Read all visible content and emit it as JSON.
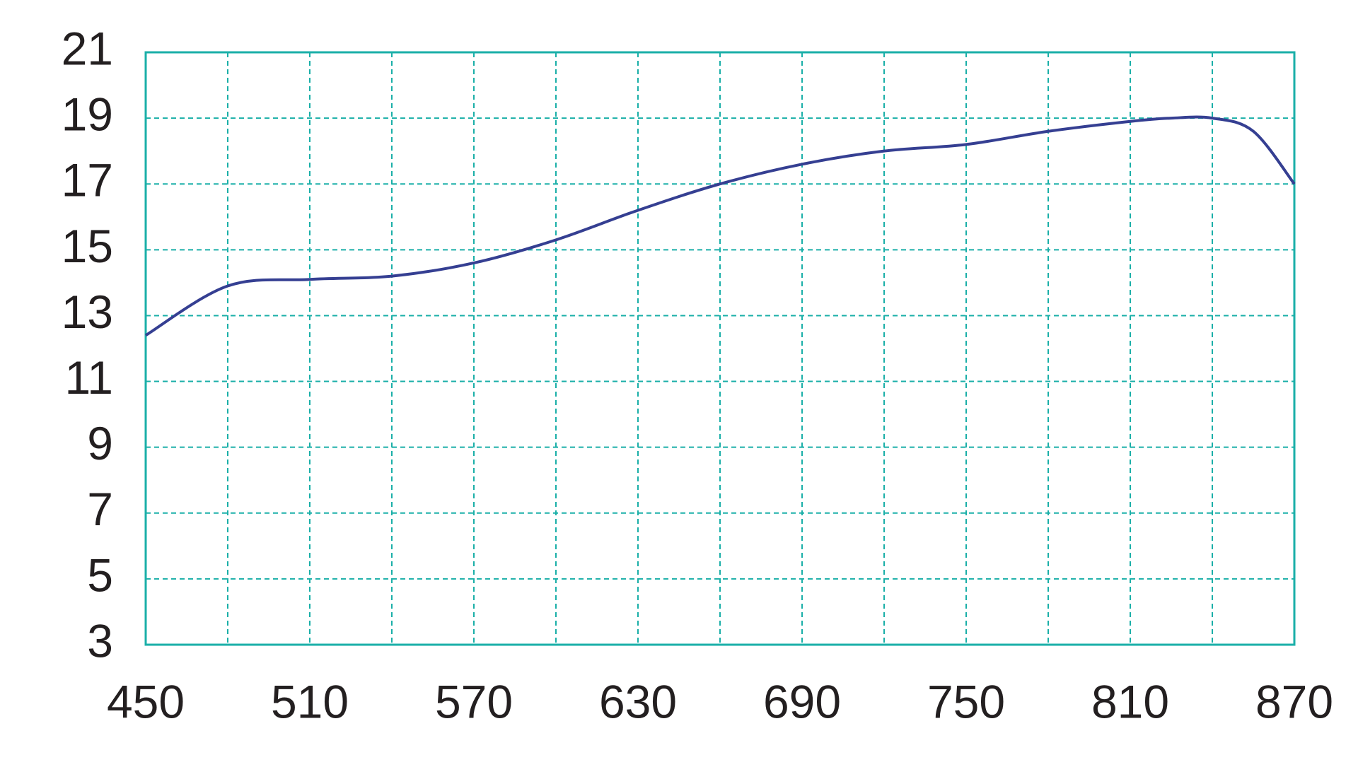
{
  "chart_data": {
    "type": "line",
    "x": [
      450,
      480,
      510,
      540,
      570,
      600,
      630,
      660,
      690,
      720,
      750,
      780,
      810,
      825,
      840,
      855,
      870
    ],
    "series": [
      {
        "color": "#353f92",
        "values": [
          12.4,
          13.9,
          14.1,
          14.2,
          14.6,
          15.3,
          16.2,
          17.0,
          17.6,
          18.0,
          18.2,
          18.6,
          18.9,
          19.0,
          19.0,
          18.6,
          17.0
        ]
      }
    ],
    "xlim": [
      450,
      870
    ],
    "ylim": [
      3,
      21
    ],
    "xticks": [
      450,
      510,
      570,
      630,
      690,
      750,
      810,
      870
    ],
    "x_minor_ticks": [
      480,
      540,
      600,
      660,
      720,
      780,
      840
    ],
    "yticks": [
      3,
      5,
      7,
      9,
      11,
      13,
      15,
      17,
      19,
      21
    ],
    "grid": true,
    "grid_color": "#1aafa8"
  }
}
